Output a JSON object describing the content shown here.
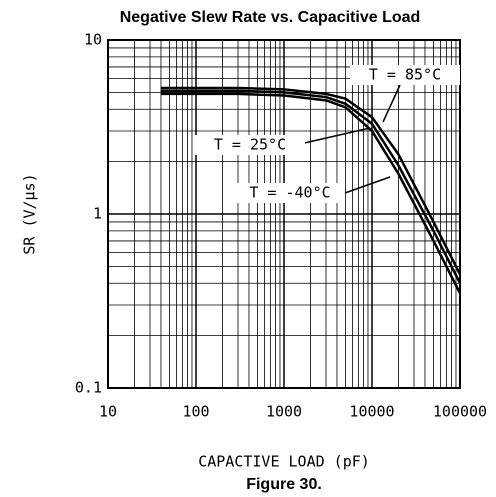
{
  "chart_data": {
    "type": "line",
    "title": "Negative Slew Rate vs. Capacitive Load",
    "xlabel": "CAPACTIVE LOAD (pF)",
    "ylabel": "SR (V/µs)",
    "caption": "Figure 30.",
    "log_x": true,
    "log_y": true,
    "grid": true,
    "x": [
      40,
      100,
      300,
      1000,
      3000,
      5000,
      10000,
      20000,
      50000,
      100000
    ],
    "series": [
      {
        "name": "T = -40°C",
        "color": "#000000",
        "values": [
          5.3,
          5.3,
          5.3,
          5.2,
          4.9,
          4.6,
          3.6,
          2.2,
          0.9,
          0.45
        ]
      },
      {
        "name": "T = 25°C",
        "color": "#000000",
        "values": [
          5.1,
          5.1,
          5.1,
          5.0,
          4.7,
          4.3,
          3.3,
          1.9,
          0.8,
          0.4
        ]
      },
      {
        "name": "T = 85°C",
        "color": "#000000",
        "values": [
          4.9,
          4.9,
          4.9,
          4.8,
          4.5,
          4.1,
          3.0,
          1.7,
          0.7,
          0.35
        ]
      }
    ],
    "xlim": [
      10,
      100000
    ],
    "xticks": [
      10,
      100,
      1000,
      10000,
      100000
    ],
    "ylim": [
      0.1,
      10
    ],
    "yticks": [
      0.1,
      1,
      10
    ]
  }
}
